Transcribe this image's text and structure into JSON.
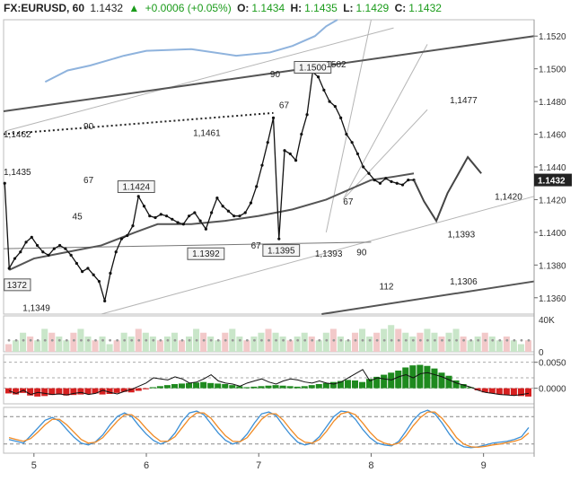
{
  "header": {
    "symbol": "FX:EURUSD, 60",
    "last": "1.1432",
    "change": "+0.0006 (+0.05%)",
    "o_label": "O:",
    "o": "1.1434",
    "h_label": "H:",
    "h": "1.1435",
    "l_label": "L:",
    "l": "1.1429",
    "c_label": "C:",
    "c": "1.1432",
    "up_color": "#1a9b1a"
  },
  "chart_data": [
    {
      "type": "candlestick",
      "pane": "price",
      "ylim": [
        1.135,
        1.153
      ],
      "y_ticks": [
        "1.1520",
        "1.1500",
        "1.1480",
        "1.1460",
        "1.1440",
        "1.1420",
        "1.1400",
        "1.1380",
        "1.1360"
      ],
      "x_ticks": [
        {
          "label": "5",
          "day": 5
        },
        {
          "label": "6",
          "day": 6
        },
        {
          "label": "7",
          "day": 7
        },
        {
          "label": "8",
          "day": 8
        },
        {
          "label": "9",
          "day": 9
        }
      ],
      "xlim": [
        4.73,
        9.45
      ],
      "current_price_label": "1.1432",
      "price_path": [
        [
          4.74,
          1.143
        ],
        [
          4.78,
          1.1378
        ],
        [
          4.83,
          1.1384
        ],
        [
          4.88,
          1.1388
        ],
        [
          4.93,
          1.1394
        ],
        [
          4.98,
          1.1397
        ],
        [
          5.03,
          1.1392
        ],
        [
          5.08,
          1.1388
        ],
        [
          5.13,
          1.1386
        ],
        [
          5.18,
          1.139
        ],
        [
          5.23,
          1.1392
        ],
        [
          5.28,
          1.139
        ],
        [
          5.33,
          1.1386
        ],
        [
          5.38,
          1.1381
        ],
        [
          5.43,
          1.1376
        ],
        [
          5.48,
          1.1378
        ],
        [
          5.53,
          1.1374
        ],
        [
          5.58,
          1.137
        ],
        [
          5.63,
          1.1358
        ],
        [
          5.68,
          1.1375
        ],
        [
          5.73,
          1.1388
        ],
        [
          5.78,
          1.1396
        ],
        [
          5.83,
          1.1398
        ],
        [
          5.88,
          1.1404
        ],
        [
          5.93,
          1.1422
        ],
        [
          5.98,
          1.1416
        ],
        [
          6.03,
          1.141
        ],
        [
          6.08,
          1.1409
        ],
        [
          6.13,
          1.1411
        ],
        [
          6.18,
          1.141
        ],
        [
          6.23,
          1.1408
        ],
        [
          6.28,
          1.1406
        ],
        [
          6.33,
          1.1405
        ],
        [
          6.38,
          1.141
        ],
        [
          6.43,
          1.1412
        ],
        [
          6.48,
          1.1407
        ],
        [
          6.53,
          1.1402
        ],
        [
          6.58,
          1.1412
        ],
        [
          6.63,
          1.1421
        ],
        [
          6.68,
          1.1416
        ],
        [
          6.73,
          1.1413
        ],
        [
          6.78,
          1.141
        ],
        [
          6.83,
          1.141
        ],
        [
          6.88,
          1.1412
        ],
        [
          6.93,
          1.1418
        ],
        [
          6.98,
          1.1428
        ],
        [
          7.03,
          1.1441
        ],
        [
          7.08,
          1.1455
        ],
        [
          7.13,
          1.147
        ],
        [
          7.18,
          1.1396
        ],
        [
          7.23,
          1.145
        ],
        [
          7.28,
          1.1448
        ],
        [
          7.33,
          1.1444
        ],
        [
          7.38,
          1.146
        ],
        [
          7.43,
          1.1472
        ],
        [
          7.48,
          1.1498
        ],
        [
          7.53,
          1.1495
        ],
        [
          7.58,
          1.1487
        ],
        [
          7.63,
          1.148
        ],
        [
          7.68,
          1.1477
        ],
        [
          7.73,
          1.147
        ],
        [
          7.78,
          1.146
        ],
        [
          7.83,
          1.1455
        ],
        [
          7.88,
          1.1448
        ],
        [
          7.93,
          1.144
        ],
        [
          7.98,
          1.1436
        ],
        [
          8.03,
          1.1432
        ],
        [
          8.08,
          1.143
        ],
        [
          8.13,
          1.1433
        ],
        [
          8.18,
          1.1431
        ],
        [
          8.23,
          1.143
        ],
        [
          8.28,
          1.1429
        ],
        [
          8.33,
          1.1432
        ],
        [
          8.38,
          1.1432
        ]
      ],
      "forecast_path": [
        [
          8.38,
          1.1432
        ],
        [
          8.47,
          1.1419
        ],
        [
          8.58,
          1.1407
        ],
        [
          8.68,
          1.1424
        ],
        [
          8.86,
          1.1446
        ],
        [
          8.98,
          1.1436
        ]
      ],
      "sma_path": [
        [
          4.78,
          1.1377
        ],
        [
          5.0,
          1.1384
        ],
        [
          5.3,
          1.1388
        ],
        [
          5.6,
          1.1392
        ],
        [
          5.9,
          1.14
        ],
        [
          6.1,
          1.1405
        ],
        [
          6.4,
          1.1405
        ],
        [
          6.7,
          1.1407
        ],
        [
          7.0,
          1.141
        ],
        [
          7.3,
          1.1414
        ],
        [
          7.6,
          1.142
        ],
        [
          7.8,
          1.1426
        ],
        [
          8.0,
          1.1432
        ],
        [
          8.2,
          1.1434
        ],
        [
          8.38,
          1.1436
        ]
      ],
      "upper_band_path": [
        [
          5.1,
          1.1492
        ],
        [
          5.3,
          1.1499
        ],
        [
          5.5,
          1.1502
        ],
        [
          5.8,
          1.1508
        ],
        [
          6.0,
          1.1511
        ],
        [
          6.4,
          1.1512
        ],
        [
          6.8,
          1.1508
        ],
        [
          7.1,
          1.151
        ],
        [
          7.3,
          1.1514
        ],
        [
          7.5,
          1.152
        ],
        [
          7.6,
          1.1526
        ],
        [
          7.7,
          1.153
        ]
      ],
      "trendlines": [
        {
          "from": [
            4.73,
            1.1474
          ],
          "to": [
            9.45,
            1.152
          ],
          "style": "solid",
          "weight": "thick"
        },
        {
          "from": [
            7.56,
            1.135
          ],
          "to": [
            9.45,
            1.137
          ],
          "style": "solid",
          "weight": "thick"
        },
        {
          "from": [
            4.73,
            1.146
          ],
          "to": [
            7.13,
            1.1473
          ],
          "style": "dotted",
          "weight": "thick"
        },
        {
          "from": [
            4.73,
            1.139
          ],
          "to": [
            8.0,
            1.1394
          ],
          "style": "solid",
          "weight": "thin"
        }
      ],
      "fan_lines": [
        {
          "from": [
            7.6,
            1.14
          ],
          "to": [
            8.0,
            1.153
          ]
        },
        {
          "from": [
            7.75,
            1.142
          ],
          "to": [
            8.5,
            1.1515
          ]
        },
        {
          "from": [
            7.75,
            1.142
          ],
          "to": [
            8.5,
            1.1475
          ]
        },
        {
          "from": [
            5.6,
            1.135
          ],
          "to": [
            9.45,
            1.1422
          ]
        },
        {
          "from": [
            4.75,
            1.1462
          ],
          "to": [
            8.2,
            1.1525
          ]
        }
      ],
      "levels": [
        {
          "label": "90",
          "at": [
            7.19,
            1.1495
          ],
          "anchor": "end"
        },
        {
          "label": "1.1500",
          "at": [
            7.48,
            1.1499
          ],
          "anchor": "middle",
          "boxed": true
        },
        {
          "label": "1502",
          "at": [
            7.6,
            1.1501
          ],
          "anchor": "start"
        },
        {
          "label": "1,1477",
          "at": [
            8.7,
            1.1479
          ],
          "anchor": "start"
        },
        {
          "label": "67",
          "at": [
            7.27,
            1.1476
          ],
          "anchor": "end"
        },
        {
          "label": "1,1462",
          "at": [
            4.73,
            1.1458
          ],
          "anchor": "start"
        },
        {
          "label": "90",
          "at": [
            5.53,
            1.1463
          ],
          "anchor": "end"
        },
        {
          "label": "1,1461",
          "at": [
            6.66,
            1.1459
          ],
          "anchor": "end"
        },
        {
          "label": "1,1435",
          "at": [
            4.73,
            1.1435
          ],
          "anchor": "start"
        },
        {
          "label": "67",
          "at": [
            5.53,
            1.143
          ],
          "anchor": "end"
        },
        {
          "label": "1.1424",
          "at": [
            5.91,
            1.1426
          ],
          "anchor": "middle",
          "boxed": true
        },
        {
          "label": "67",
          "at": [
            7.84,
            1.1417
          ],
          "anchor": "end"
        },
        {
          "label": "1,1420",
          "at": [
            9.1,
            1.142
          ],
          "anchor": "start"
        },
        {
          "label": "45",
          "at": [
            5.43,
            1.1408
          ],
          "anchor": "end"
        },
        {
          "label": "1,1393",
          "at": [
            8.68,
            1.1397
          ],
          "anchor": "start"
        },
        {
          "label": "67",
          "at": [
            7.02,
            1.139
          ],
          "anchor": "end"
        },
        {
          "label": "1.1392",
          "at": [
            6.53,
            1.1385
          ],
          "anchor": "middle",
          "boxed": true
        },
        {
          "label": "1.1395",
          "at": [
            7.2,
            1.1387
          ],
          "anchor": "middle",
          "boxed": true
        },
        {
          "label": "1,1393",
          "at": [
            7.5,
            1.1385
          ],
          "anchor": "start"
        },
        {
          "label": "90",
          "at": [
            7.96,
            1.1386
          ],
          "anchor": "end"
        },
        {
          "label": "1372",
          "at": [
            4.76,
            1.1366
          ],
          "anchor": "start",
          "boxed": true
        },
        {
          "label": "112",
          "at": [
            8.2,
            1.1365
          ],
          "anchor": "end"
        },
        {
          "label": "1,1306",
          "at": [
            8.7,
            1.1368
          ],
          "anchor": "start"
        },
        {
          "label": "1,1349",
          "at": [
            4.9,
            1.1352
          ],
          "anchor": "start"
        }
      ]
    },
    {
      "type": "bar",
      "pane": "volume",
      "y_ticks": [
        "40K",
        "0"
      ],
      "bars": [
        2,
        3,
        5,
        4,
        3,
        6,
        5,
        4,
        3,
        5,
        6,
        4,
        3,
        4,
        2,
        3,
        5,
        4,
        6,
        5,
        4,
        3,
        4,
        5,
        3,
        4,
        6,
        5,
        4,
        3,
        5,
        6,
        4,
        3,
        4,
        5,
        6,
        5,
        4,
        3,
        4,
        5,
        4,
        3,
        5,
        6,
        4,
        3,
        5,
        6,
        4,
        5,
        6,
        7,
        6,
        5,
        4,
        5,
        6,
        5,
        4,
        5,
        6,
        4,
        3,
        4,
        5,
        4,
        3,
        4,
        3,
        2,
        3
      ],
      "ma_points": [
        3,
        3,
        3,
        3,
        3,
        3,
        3,
        3,
        3,
        3,
        3,
        3,
        3,
        3,
        3,
        3,
        3,
        3,
        3,
        3,
        3,
        3,
        3,
        3,
        3,
        3,
        3,
        3,
        3,
        3,
        3,
        3,
        3,
        3,
        3,
        3,
        3,
        3,
        3,
        3,
        3,
        3,
        3,
        3,
        3,
        3,
        3,
        3,
        3,
        3,
        3,
        3,
        3,
        3,
        3,
        3,
        3,
        3,
        3,
        3,
        3,
        3,
        3,
        3,
        3,
        3,
        3,
        3,
        3,
        3,
        3,
        3,
        3
      ]
    },
    {
      "type": "histogram",
      "pane": "macd",
      "y_ticks": [
        "0.0050",
        "0.0000"
      ],
      "ylim": [
        -0.003,
        0.0065
      ],
      "zero_line": 0.0,
      "up_color": "#1e8a1e",
      "down_color": "#d62020",
      "histogram": [
        -0.001,
        -0.0012,
        -0.0009,
        -0.0014,
        -0.0016,
        -0.0015,
        -0.0013,
        -0.0012,
        -0.0014,
        -0.0013,
        -0.0012,
        -0.0011,
        -0.001,
        -0.0012,
        -0.0011,
        -0.0009,
        -0.0007,
        -0.0008,
        -0.0005,
        -0.0002,
        0.0002,
        0.0004,
        0.0006,
        0.0008,
        0.0009,
        0.001,
        0.0011,
        0.0012,
        0.001,
        0.0009,
        0.0008,
        0.0006,
        0.0004,
        0.0002,
        0.0003,
        0.0004,
        0.0005,
        0.0006,
        0.0005,
        0.0004,
        0.0003,
        0.0004,
        0.0006,
        0.0008,
        0.001,
        0.0012,
        0.0014,
        0.0016,
        0.0015,
        0.0012,
        0.0018,
        0.0022,
        0.0026,
        0.003,
        0.0034,
        0.004,
        0.0044,
        0.0045,
        0.0043,
        0.0038,
        0.003,
        0.0024,
        0.0015,
        0.0008,
        0.0002,
        -0.0004,
        -0.0008,
        -0.001,
        -0.0012,
        -0.0013,
        -0.0014,
        -0.0015,
        -0.0016
      ],
      "macd_line": [
        -0.0005,
        -0.001,
        -0.0004,
        -0.0012,
        -0.0008,
        -0.001,
        -0.0012,
        -0.0011,
        -0.0013,
        -0.001,
        -0.0008,
        -0.0012,
        -0.001,
        -0.0004,
        -0.0008,
        -0.0011,
        -0.0006,
        -0.0002,
        0.0004,
        0.001,
        0.002,
        0.0018,
        0.0016,
        0.0022,
        0.0018,
        0.001,
        0.0012,
        0.0018,
        0.0026,
        0.0014,
        0.001,
        0.0008,
        0.0004,
        0.001,
        0.0014,
        0.0018,
        0.0012,
        0.0008,
        0.0014,
        0.0018,
        0.0016,
        0.0012,
        0.001,
        0.0014,
        0.001,
        0.0008,
        0.0012,
        0.002,
        0.0028,
        0.0036,
        0.0014,
        0.002,
        0.0018,
        0.0016,
        0.0022,
        0.0026,
        0.002,
        0.0028,
        0.003,
        0.0026,
        0.0022,
        0.0016,
        0.001,
        0.0006,
        0.0002,
        -0.0004,
        -0.0008,
        -0.001,
        -0.0012,
        -0.0013,
        -0.0014,
        -0.0012,
        -0.001
      ],
      "guide_lines": [
        0.005,
        0.002,
        0.0
      ]
    },
    {
      "type": "line",
      "pane": "stochastic",
      "ylim": [
        0,
        100
      ],
      "guide_lines": [
        80,
        20
      ],
      "series": [
        {
          "color": "#3b8fd6",
          "values": [
            30,
            26,
            22,
            38,
            55,
            72,
            78,
            70,
            52,
            35,
            22,
            18,
            25,
            40,
            62,
            80,
            88,
            80,
            60,
            42,
            28,
            20,
            26,
            44,
            70,
            88,
            92,
            84,
            64,
            44,
            28,
            20,
            25,
            42,
            66,
            86,
            90,
            82,
            60,
            40,
            24,
            18,
            22,
            36,
            58,
            80,
            92,
            90,
            74,
            52,
            34,
            22,
            18,
            16,
            26,
            48,
            72,
            88,
            94,
            86,
            66,
            42,
            22,
            14,
            12,
            14,
            18,
            22,
            24,
            26,
            30,
            36,
            56
          ]
        },
        {
          "color": "#f08a24",
          "values": [
            34,
            30,
            26,
            32,
            46,
            62,
            74,
            74,
            62,
            46,
            30,
            22,
            24,
            34,
            52,
            70,
            84,
            84,
            72,
            54,
            38,
            26,
            26,
            36,
            56,
            76,
            88,
            88,
            76,
            56,
            38,
            26,
            25,
            34,
            54,
            74,
            86,
            86,
            72,
            52,
            34,
            24,
            22,
            30,
            48,
            70,
            86,
            90,
            84,
            66,
            46,
            30,
            22,
            18,
            22,
            38,
            60,
            78,
            90,
            90,
            76,
            56,
            34,
            20,
            14,
            13,
            15,
            18,
            20,
            23,
            26,
            31,
            44
          ]
        }
      ]
    }
  ]
}
